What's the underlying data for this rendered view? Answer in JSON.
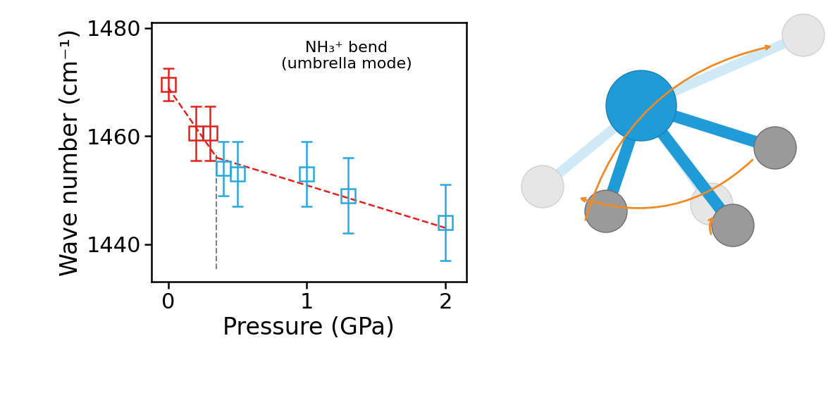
{
  "chart_data": {
    "type": "scatter",
    "xlabel": "Pressure (GPa)",
    "ylabel": "Wave number (cm⁻¹)",
    "annotation": "NH₃⁺ bend\n(umbrella mode)",
    "threshold_x": 0.35,
    "xlim": [
      -0.12,
      2.15
    ],
    "ylim": [
      1433,
      1481
    ],
    "xticks": [
      0,
      1,
      2
    ],
    "yticks": [
      1440,
      1460,
      1480
    ],
    "series": [
      {
        "type": "scatter",
        "color": "#e3211c",
        "marker": "square",
        "x": [
          0,
          0.2,
          0.3
        ],
        "values": [
          1469.5,
          1460.5,
          1460.5
        ],
        "errors": [
          3,
          5,
          5
        ]
      },
      {
        "type": "scatter",
        "color": "#29a8e0",
        "marker": "square",
        "x": [
          0.4,
          0.5,
          1.0,
          1.3,
          2.0
        ],
        "values": [
          1454,
          1453,
          1453,
          1449,
          1444
        ],
        "errors": [
          5,
          6,
          6,
          7,
          7
        ]
      },
      {
        "type": "line",
        "color": "#e3211c",
        "line_style": "dashed",
        "x": [
          0,
          0.35
        ],
        "values": [
          1469,
          1456
        ]
      },
      {
        "type": "line",
        "color": "#e3211c",
        "line_style": "dashed",
        "x": [
          0.35,
          2.0
        ],
        "values": [
          1456,
          1443
        ]
      }
    ]
  }
}
